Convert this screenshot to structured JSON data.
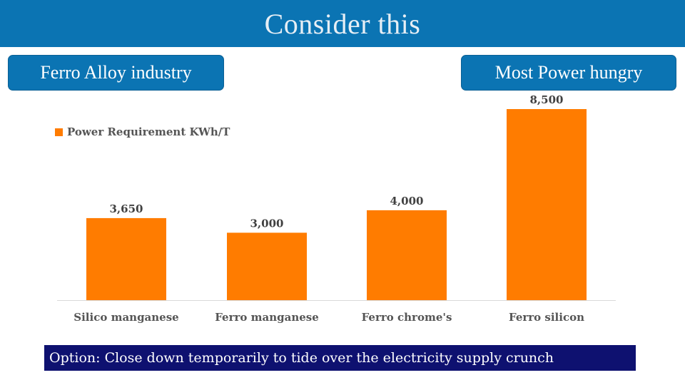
{
  "slide": {
    "title": "Consider this",
    "callout_left": "Ferro Alloy industry",
    "callout_right": "Most Power hungry",
    "banner": "Option: Close down temporarily to tide over the electricity supply crunch"
  },
  "colors": {
    "title_bar": "#0b74b3",
    "bar": "#ff7c00",
    "banner": "#0e1170"
  },
  "chart_data": {
    "type": "bar",
    "title": "",
    "categories": [
      "Silico manganese",
      "Ferro manganese",
      "Ferro chrome's",
      "Ferro silicon"
    ],
    "series": [
      {
        "name": "Power Requirement KWh/T",
        "values": [
          3650,
          3000,
          4000,
          8500
        ],
        "labels": [
          "3,650",
          "3,000",
          "4,000",
          "8,500"
        ]
      }
    ],
    "xlabel": "",
    "ylabel": "",
    "ylim": [
      0,
      8500
    ],
    "grid": false,
    "legend": "top-left"
  }
}
